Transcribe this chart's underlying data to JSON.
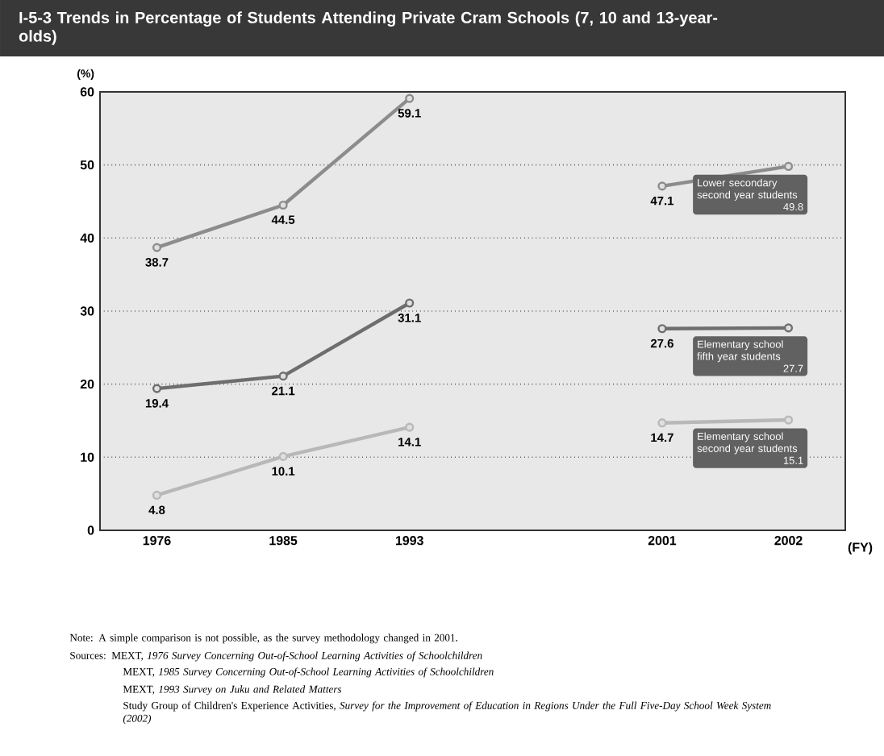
{
  "chart_data": {
    "type": "line",
    "title": "I-5-3    Trends in Percentage of Students Attending Private Cram Schools (7, 10 and 13-year-olds)",
    "ylabel": "(%)",
    "xlabel": "(FY)",
    "categories": [
      "1976",
      "1985",
      "1993",
      null,
      "2001",
      "2002"
    ],
    "series": [
      {
        "name": "Lower secondary second year students",
        "color": "#8c8c8c",
        "values": [
          38.7,
          44.5,
          59.1,
          null,
          47.1,
          49.8
        ]
      },
      {
        "name": "Elementary school fifth year students",
        "color": "#6e6e6e",
        "values": [
          19.4,
          21.1,
          31.1,
          null,
          27.6,
          27.7
        ]
      },
      {
        "name": "Elementary school second year students",
        "color": "#b8b8b8",
        "values": [
          4.8,
          10.1,
          14.1,
          null,
          14.7,
          15.1
        ]
      }
    ],
    "ylim": [
      0,
      60
    ],
    "yticks": [
      0,
      10,
      20,
      30,
      40,
      50,
      60
    ],
    "grid": "y",
    "marker": "circle",
    "line_style": "solid",
    "data_labels": true,
    "legend": false,
    "annotations": [
      "Note: A simple comparison is not possible, as the survey methodology changed in 2001.",
      "Sources: MEXT, *1976 Survey Concerning Out-of-School Learning Activities of Schoolchildren*",
      "MEXT, *1985 Survey Concerning Out-of-School Learning Activities of Schoolchildren*",
      "MEXT, *1993 Survey on Juku and Related Matters*",
      "Study Group of Children's Experience Activities, *Survey for the Improvement of Education in Regions Under the Full Five-Day School Week System (2002)*"
    ]
  }
}
